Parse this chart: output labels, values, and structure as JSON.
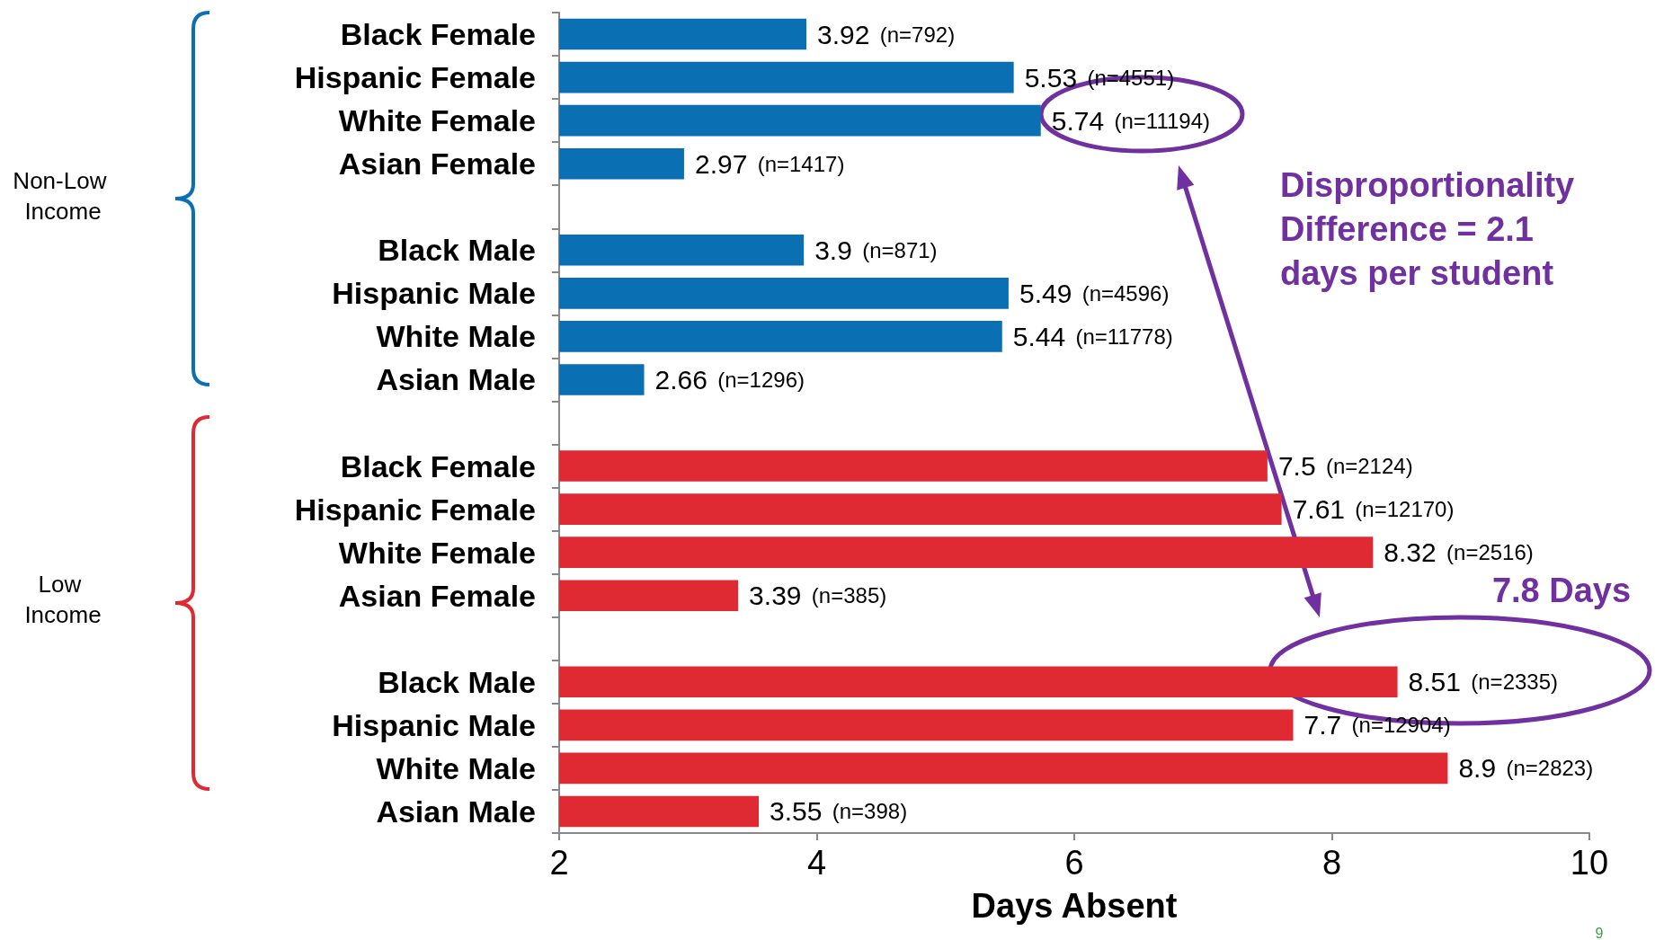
{
  "chart_data": {
    "type": "bar",
    "orientation": "horizontal",
    "xlabel": "Days Absent",
    "categories": [
      "Black Female",
      "Hispanic Female",
      "White Female",
      "Asian Female",
      null,
      "Black Male",
      "Hispanic Male",
      "White Male",
      "Asian Male",
      null,
      "Black Female",
      "Hispanic Female",
      "White Female",
      "Asian Female",
      null,
      "Black Male",
      "Hispanic Male",
      "White Male",
      "Asian Male"
    ],
    "values": [
      3.92,
      5.53,
      5.74,
      2.97,
      null,
      3.9,
      5.49,
      5.44,
      2.66,
      null,
      7.5,
      7.61,
      8.32,
      3.39,
      null,
      8.51,
      7.7,
      8.9,
      3.55
    ],
    "colors": [
      "#0b6fb3",
      "#0b6fb3",
      "#0b6fb3",
      "#0b6fb3",
      null,
      "#0b6fb3",
      "#0b6fb3",
      "#0b6fb3",
      "#0b6fb3",
      null,
      "#df2a33",
      "#df2a33",
      "#df2a33",
      "#df2a33",
      null,
      "#df2a33",
      "#df2a33",
      "#df2a33",
      "#df2a33"
    ],
    "value_labels": [
      "3.92 (n=792)",
      "5.53 (n=4551)",
      "5.74 (n=11194)",
      "2.97 (n=1417)",
      null,
      "3.9 (n=871)",
      "5.49 (n=4596)",
      "5.44 (n=11778)",
      "2.66 (n=1296)",
      null,
      "7.5 (n=2124)",
      "7.61 (n=12170)",
      "8.32 (n=2516)",
      "3.39 (n=385)",
      null,
      "8.51 (n=2335)",
      "7.7 (n=12904)",
      "8.9 (n=2823)",
      "3.55 (n=398)"
    ],
    "xlim": [
      2,
      10
    ],
    "xticks": [
      2,
      4,
      6,
      8,
      10
    ],
    "grid": false,
    "annotations": [
      "Non-Low Income",
      "Low Income",
      "Disproportionality Difference = 2.1 days per student",
      "7.8 Days",
      "9"
    ]
  }
}
